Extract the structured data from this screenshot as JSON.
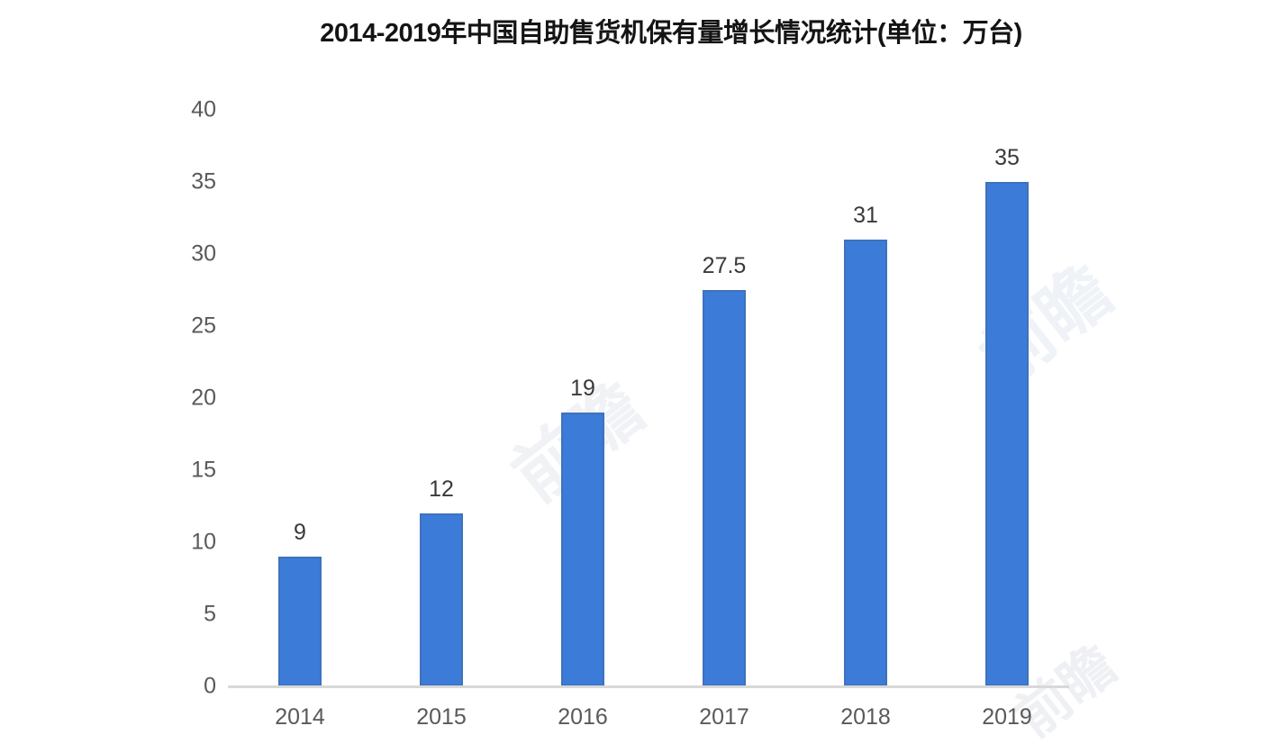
{
  "chart_data": {
    "type": "bar",
    "title": "2014-2019年中国自助售货机保有量增长情况统计(单位：万台)",
    "categories": [
      "2014",
      "2015",
      "2016",
      "2017",
      "2018",
      "2019"
    ],
    "values": [
      9,
      12,
      19,
      27.5,
      31,
      35
    ],
    "value_labels": [
      "9",
      "12",
      "19",
      "27.5",
      "31",
      "35"
    ],
    "xlabel": "",
    "ylabel": "",
    "ylim": [
      0,
      40
    ],
    "yticks": [
      0,
      5,
      10,
      15,
      20,
      25,
      30,
      35,
      40
    ],
    "grid": false,
    "legend_position": "none",
    "bar_color": "#3c7bd8",
    "axis_line_color": "#d8d8d8",
    "tick_label_color": "#595959",
    "value_label_color": "#3a3a3a",
    "title_color": "#141414",
    "background_color": "#ffffff"
  },
  "watermark": {
    "text": "前瞻"
  }
}
